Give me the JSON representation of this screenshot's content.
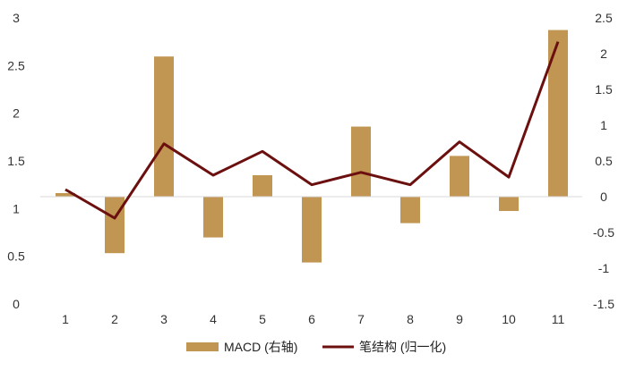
{
  "chart_data": {
    "type": "bar+line",
    "categories": [
      "1",
      "2",
      "3",
      "4",
      "5",
      "6",
      "7",
      "8",
      "9",
      "10",
      "11"
    ],
    "series": [
      {
        "name": "MACD (右轴)",
        "kind": "bar",
        "axis": "right",
        "color": "#C19552",
        "values": [
          0.05,
          -0.79,
          1.96,
          -0.57,
          0.3,
          -0.92,
          0.98,
          -0.37,
          0.57,
          -0.2,
          2.33
        ]
      },
      {
        "name": "笔结构 (归一化)",
        "kind": "line",
        "axis": "left",
        "color": "#6B0F0F",
        "values": [
          1.2,
          0.9,
          1.68,
          1.35,
          1.6,
          1.25,
          1.38,
          1.25,
          1.7,
          1.33,
          2.75
        ]
      }
    ],
    "left_axis": {
      "min": 0,
      "max": 3,
      "ticks": [
        "0",
        "0.5",
        "1",
        "1.5",
        "2",
        "2.5",
        "3"
      ]
    },
    "right_axis": {
      "min": -1.5,
      "max": 2.5,
      "ticks": [
        "-1.5",
        "-1",
        "-0.5",
        "0",
        "0.5",
        "1",
        "1.5",
        "2",
        "2.5"
      ]
    },
    "grid": false,
    "legend_position": "bottom"
  }
}
